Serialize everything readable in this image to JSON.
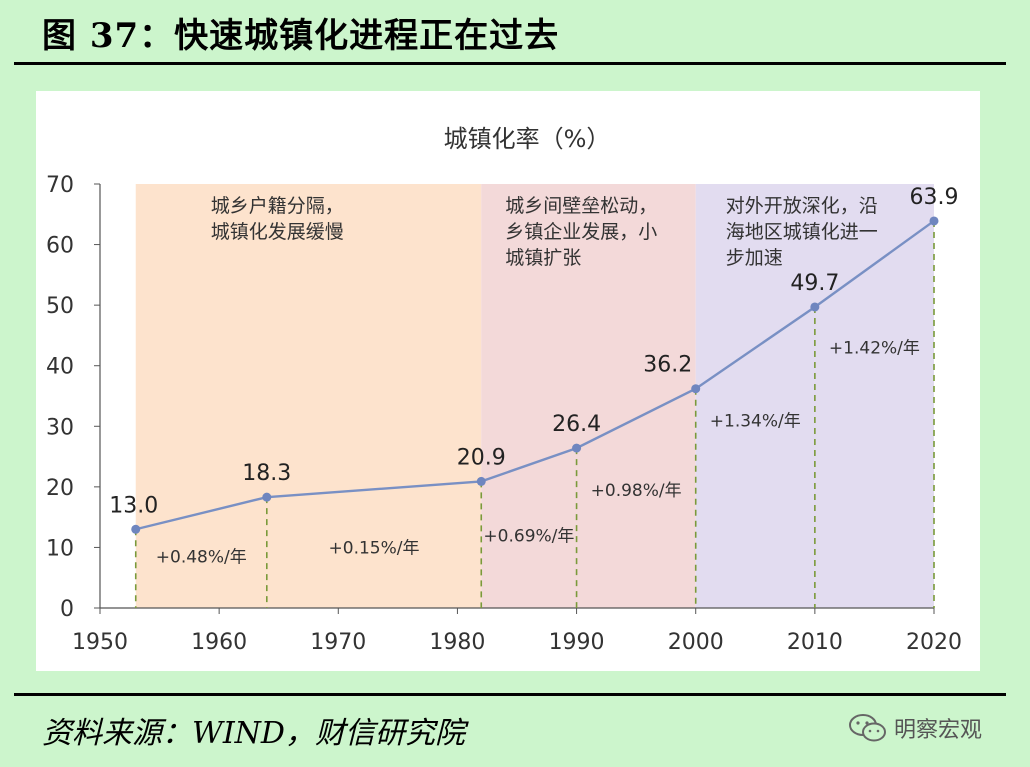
{
  "header": {
    "title": "图 37：快速城镇化进程正在过去"
  },
  "footer": {
    "source": "资料来源：WIND，财信研究院",
    "watermark": "明察宏观"
  },
  "colors": {
    "line": "#7990c4",
    "marker": "#6f86bf",
    "drop_line": "#7a9a3a",
    "period1": "#fde3cd",
    "period2": "#f3d9d9",
    "period3": "#e2dcf0"
  },
  "icons": {
    "watermark": "wechat-logo-icon"
  },
  "chart_data": {
    "type": "line",
    "title": "城镇化率（%）",
    "xlim": [
      1950,
      2020
    ],
    "ylim": [
      0,
      70
    ],
    "x_ticks": [
      "1950",
      "1960",
      "1970",
      "1980",
      "1990",
      "2000",
      "2010",
      "2020"
    ],
    "y_ticks": [
      "0",
      "10",
      "20",
      "30",
      "40",
      "50",
      "60",
      "70"
    ],
    "grid": false,
    "series": [
      {
        "x": [
          1953,
          1964,
          1982,
          1990,
          2000,
          2010,
          2020
        ],
        "values": [
          13.0,
          18.3,
          20.9,
          26.4,
          36.2,
          49.7,
          63.9
        ],
        "labels": [
          "13.0",
          "18.3",
          "20.9",
          "26.4",
          "36.2",
          "49.7",
          "63.9"
        ]
      }
    ],
    "periods": [
      {
        "from": 1953,
        "to": 1982,
        "lines": [
          "城乡户籍分隔，",
          "城镇化发展缓慢"
        ]
      },
      {
        "from": 1982,
        "to": 2000,
        "lines": [
          "城乡间壁垒松动，",
          "乡镇企业发展，小",
          "城镇扩张"
        ]
      },
      {
        "from": 2000,
        "to": 2020,
        "lines": [
          "对外开放深化，沿",
          "海地区城镇化进一",
          "步加速"
        ]
      }
    ],
    "growth_annotations": [
      {
        "text": "+0.48%/年",
        "x": 1958.5,
        "y": 7.5
      },
      {
        "text": "+0.15%/年",
        "x": 1973.0,
        "y": 9.0
      },
      {
        "text": "+0.69%/年",
        "x": 1986.0,
        "y": 11.0
      },
      {
        "text": "+0.98%/年",
        "x": 1995.0,
        "y": 18.5
      },
      {
        "text": "+1.34%/年",
        "x": 2005.0,
        "y": 30.0
      },
      {
        "text": "+1.42%/年",
        "x": 2015.0,
        "y": 42.0
      }
    ]
  }
}
